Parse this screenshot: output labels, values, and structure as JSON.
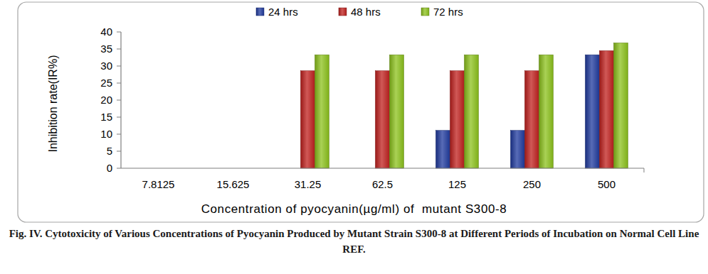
{
  "chart_data": {
    "type": "bar",
    "title": "Fig. IV. Cytotoxicity of Various Concentrations of Pyocyanin Produced by Mutant Strain S300-8 at Different Periods of Incubation on Normal Cell Line REF.",
    "x_label": "Concentration of pyocyanin(µg/ml) of  mutant S300-8",
    "y_label": "Inhibition rate(IR%)",
    "categories": [
      "7.8125",
      "15.625",
      "31.25",
      "62.5",
      "125",
      "250",
      "500"
    ],
    "series": [
      {
        "name": "24 hrs",
        "color": "#1f3a9e",
        "values": [
          0,
          0,
          0,
          0,
          11.1,
          11.1,
          33.3
        ]
      },
      {
        "name": "48 hrs",
        "color": "#c0201e",
        "values": [
          0,
          0,
          28.6,
          28.6,
          28.6,
          28.6,
          34.5
        ]
      },
      {
        "name": "72 hrs",
        "color": "#8cc21c",
        "values": [
          0,
          0,
          33.3,
          33.3,
          33.3,
          33.3,
          36.8
        ]
      }
    ],
    "ylim": [
      0,
      40
    ],
    "yticks": [
      0,
      5,
      10,
      15,
      20,
      25,
      30,
      35,
      40
    ],
    "grid": false,
    "legend": "top"
  }
}
